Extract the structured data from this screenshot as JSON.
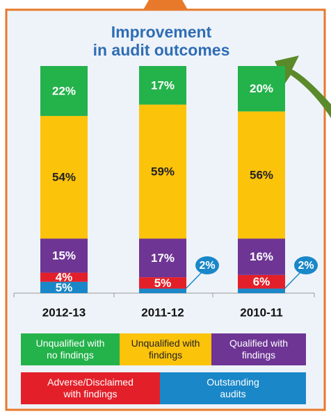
{
  "chart_data": {
    "type": "stacked_bar",
    "title": "Improvement in audit outcomes",
    "categories": [
      "2012-13",
      "2011-12",
      "2010-11"
    ],
    "ylim": [
      0,
      100
    ],
    "series": [
      {
        "name": "Outstanding audits",
        "color": "#1a87c8",
        "values": [
          5,
          2,
          2
        ],
        "value_labels": [
          "5%",
          "2%",
          "2%"
        ]
      },
      {
        "name": "Adverse/Disclaimed with findings",
        "color": "#e3202a",
        "values": [
          4,
          5,
          6
        ],
        "value_labels": [
          "4%",
          "5%",
          "6%"
        ]
      },
      {
        "name": "Qualified with findings",
        "color": "#6e3594",
        "values": [
          15,
          17,
          16
        ],
        "value_labels": [
          "15%",
          "17%",
          "16%"
        ]
      },
      {
        "name": "Unqualified with findings",
        "color": "#fcc30b",
        "values": [
          54,
          59,
          56
        ],
        "value_labels": [
          "54%",
          "59%",
          "56%"
        ]
      },
      {
        "name": "Unqualified with no findings",
        "color": "#24b24b",
        "values": [
          22,
          17,
          20
        ],
        "value_labels": [
          "22%",
          "17%",
          "20%"
        ]
      }
    ]
  }
}
